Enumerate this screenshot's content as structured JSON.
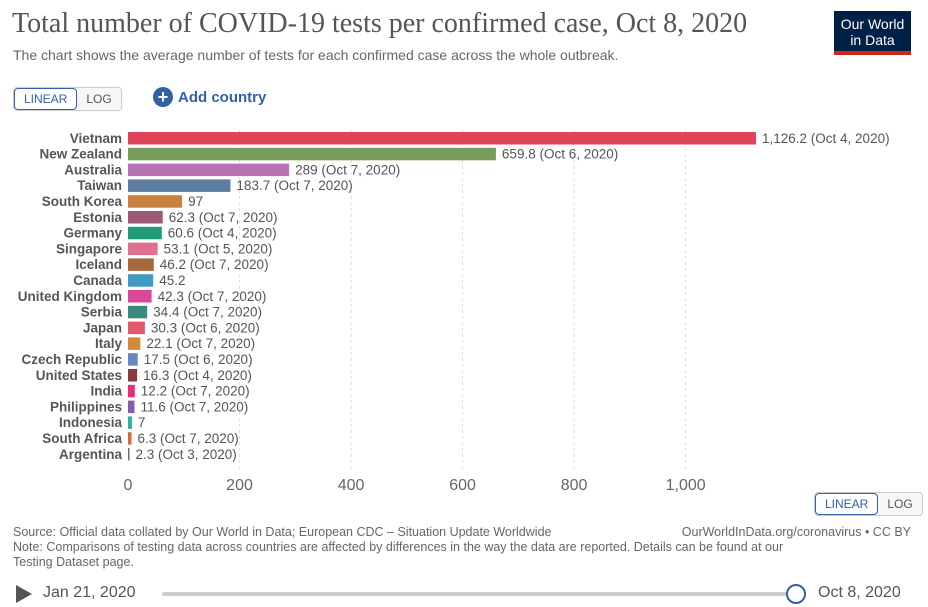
{
  "header": {
    "title": "Total number of COVID-19 tests per confirmed case, Oct 8, 2020",
    "subtitle": "The chart shows the average number of tests for each confirmed case across the whole outbreak.",
    "logo_line1": "Our World",
    "logo_line2": "in Data"
  },
  "controls": {
    "linear_label": "LINEAR",
    "log_label": "LOG",
    "add_country_label": "Add country"
  },
  "chart_data": {
    "type": "bar",
    "orientation": "horizontal",
    "xlim": [
      0,
      1126.2
    ],
    "xticks": [
      0,
      200,
      400,
      600,
      800,
      1000
    ],
    "xtick_labels": [
      "0",
      "200",
      "400",
      "600",
      "800",
      "1,000"
    ],
    "grid": true,
    "bars": [
      {
        "country": "Vietnam",
        "value": 1126.2,
        "label": "1,126.2 (Oct 4, 2020)",
        "color": "#e0435a"
      },
      {
        "country": "New Zealand",
        "value": 659.8,
        "label": "659.8 (Oct 6, 2020)",
        "color": "#7a9c5a"
      },
      {
        "country": "Australia",
        "value": 289,
        "label": "289 (Oct 7, 2020)",
        "color": "#b872b8"
      },
      {
        "country": "Taiwan",
        "value": 183.7,
        "label": "183.7 (Oct 7, 2020)",
        "color": "#5d7ea0"
      },
      {
        "country": "South Korea",
        "value": 97,
        "label": "97",
        "color": "#c8813e"
      },
      {
        "country": "Estonia",
        "value": 62.3,
        "label": "62.3 (Oct 7, 2020)",
        "color": "#9c5a78"
      },
      {
        "country": "Germany",
        "value": 60.6,
        "label": "60.6 (Oct 4, 2020)",
        "color": "#1e9a78"
      },
      {
        "country": "Singapore",
        "value": 53.1,
        "label": "53.1 (Oct 5, 2020)",
        "color": "#e07090"
      },
      {
        "country": "Iceland",
        "value": 46.2,
        "label": "46.2 (Oct 7, 2020)",
        "color": "#a86a3c"
      },
      {
        "country": "Canada",
        "value": 45.2,
        "label": "45.2",
        "color": "#3f9ac0"
      },
      {
        "country": "United Kingdom",
        "value": 42.3,
        "label": "42.3 (Oct 7, 2020)",
        "color": "#d9489a"
      },
      {
        "country": "Serbia",
        "value": 34.4,
        "label": "34.4 (Oct 7, 2020)",
        "color": "#3a8a80"
      },
      {
        "country": "Japan",
        "value": 30.3,
        "label": "30.3 (Oct 6, 2020)",
        "color": "#e05a6a"
      },
      {
        "country": "Italy",
        "value": 22.1,
        "label": "22.1 (Oct 7, 2020)",
        "color": "#d08a3a"
      },
      {
        "country": "Czech Republic",
        "value": 17.5,
        "label": "17.5 (Oct 6, 2020)",
        "color": "#6a86c0"
      },
      {
        "country": "United States",
        "value": 16.3,
        "label": "16.3 (Oct 4, 2020)",
        "color": "#8a3a3a"
      },
      {
        "country": "India",
        "value": 12.2,
        "label": "12.2 (Oct 7, 2020)",
        "color": "#e0307a"
      },
      {
        "country": "Philippines",
        "value": 11.6,
        "label": "11.6 (Oct 7, 2020)",
        "color": "#8a5ab0"
      },
      {
        "country": "Indonesia",
        "value": 7,
        "label": "7",
        "color": "#2ab0a0"
      },
      {
        "country": "South Africa",
        "value": 6.3,
        "label": "6.3 (Oct 7, 2020)",
        "color": "#d06a3a"
      },
      {
        "country": "Argentina",
        "value": 2.3,
        "label": "2.3 (Oct 3, 2020)",
        "color": "#607080"
      }
    ]
  },
  "footer": {
    "source": "Source: Official data collated by Our World in Data; European CDC – Situation Update Worldwide",
    "attribution": "OurWorldInData.org/coronavirus • CC BY",
    "note_line1": "Note: Comparisons of testing data across countries are affected by differences in the way the data are reported. Details can be found at our",
    "note_line2": "Testing Dataset page."
  },
  "timeline": {
    "start_date": "Jan 21, 2020",
    "end_date": "Oct 8, 2020"
  }
}
